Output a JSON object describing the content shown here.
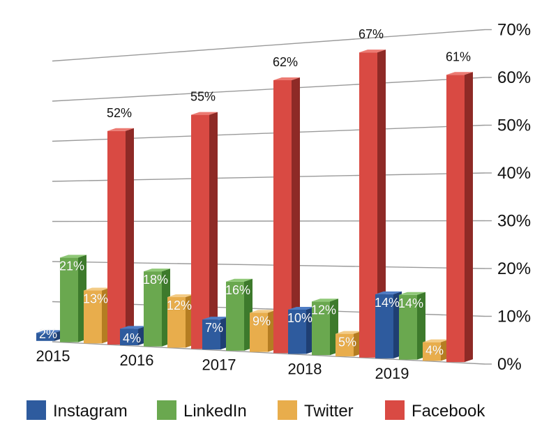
{
  "chart_data": {
    "type": "bar",
    "categories": [
      "2015",
      "2016",
      "2017",
      "2018",
      "2019"
    ],
    "series": [
      {
        "name": "Instagram",
        "values": [
          2,
          4,
          7,
          10,
          14
        ],
        "labels": [
          "2%",
          "4%",
          "7%",
          "10%",
          "14%"
        ],
        "color": "#2e5b9e"
      },
      {
        "name": "LinkedIn",
        "values": [
          21,
          18,
          16,
          12,
          14
        ],
        "labels": [
          "21%",
          "18%",
          "16%",
          "12%",
          "14%"
        ],
        "color": "#6aa84f"
      },
      {
        "name": "Twitter",
        "values": [
          13,
          12,
          9,
          5,
          4
        ],
        "labels": [
          "13%",
          "12%",
          "9%",
          "5%",
          "4%"
        ],
        "color": "#e8ad4c"
      },
      {
        "name": "Facebook",
        "values": [
          52,
          55,
          62,
          67,
          61
        ],
        "labels": [
          "52%",
          "55%",
          "62%",
          "67%",
          "61%"
        ],
        "color": "#d94a43"
      }
    ],
    "y_ticks": [
      "0%",
      "10%",
      "20%",
      "30%",
      "40%",
      "50%",
      "60%",
      "70%"
    ],
    "ylim": [
      0,
      70
    ],
    "grid": true,
    "legend_position": "bottom",
    "title": "",
    "xlabel": "",
    "ylabel": ""
  }
}
